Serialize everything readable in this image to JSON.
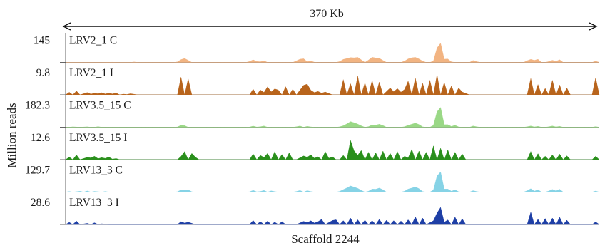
{
  "chart_data": {
    "type": "area",
    "title": "",
    "span_label": "370 Kb",
    "xlabel": "Scaffold 2244",
    "ylabel": "Million reads",
    "x_range": [
      0,
      370
    ],
    "x_unit": "Kb",
    "bin_kb": 2.5,
    "grid": false,
    "legend": "none",
    "tracks": [
      {
        "name": "LRV2_1 C",
        "ymax": "145",
        "color": "#f2b482",
        "peaks": [
          [
            29,
            0.01,
            2
          ],
          [
            33,
            0.01,
            2
          ],
          [
            48,
            0.02,
            2
          ],
          [
            81,
            0.13,
            4
          ],
          [
            84,
            0.11,
            3
          ],
          [
            130,
            0.09,
            4
          ],
          [
            137,
            0.07,
            3
          ],
          [
            162,
            0.11,
            4
          ],
          [
            165,
            0.1,
            3
          ],
          [
            170,
            0.05,
            3
          ],
          [
            193,
            0.12,
            4
          ],
          [
            198,
            0.19,
            5
          ],
          [
            203,
            0.18,
            4
          ],
          [
            213,
            0.2,
            5
          ],
          [
            218,
            0.14,
            4
          ],
          [
            238,
            0.12,
            5
          ],
          [
            243,
            0.18,
            6
          ],
          [
            258,
            0.12,
            5
          ],
          [
            259,
            1.0,
            2.5
          ],
          [
            264,
            0.16,
            4
          ],
          [
            283,
            0.08,
            3
          ],
          [
            322,
            0.12,
            4
          ],
          [
            327,
            0.13,
            3
          ],
          [
            337,
            0.09,
            3
          ],
          [
            342,
            0.11,
            3
          ],
          [
            368,
            0.06,
            2
          ]
        ]
      },
      {
        "name": "LRV2_1 I",
        "ymax": "9.8",
        "color": "#b8641c",
        "peaks": [
          [
            2,
            0.12,
            2
          ],
          [
            8,
            0.18,
            2
          ],
          [
            14,
            0.16,
            2
          ],
          [
            19,
            0.11,
            2
          ],
          [
            24,
            0.15,
            2
          ],
          [
            29,
            0.12,
            2
          ],
          [
            34,
            0.13,
            2
          ],
          [
            41,
            0.05,
            2
          ],
          [
            46,
            0.08,
            2
          ],
          [
            80,
            0.62,
            2
          ],
          [
            85,
            0.56,
            2
          ],
          [
            130,
            0.2,
            2
          ],
          [
            136,
            0.34,
            2
          ],
          [
            140,
            0.28,
            2
          ],
          [
            144,
            0.42,
            2
          ],
          [
            148,
            0.22,
            2
          ],
          [
            152,
            0.38,
            2
          ],
          [
            158,
            0.26,
            2
          ],
          [
            164,
            0.67,
            2
          ],
          [
            168,
            0.5,
            2
          ],
          [
            171,
            0.32,
            2
          ],
          [
            176,
            0.24,
            2
          ],
          [
            181,
            0.2,
            2
          ],
          [
            192,
            0.71,
            2
          ],
          [
            197,
            0.52,
            2
          ],
          [
            202,
            0.88,
            2
          ],
          [
            208,
            0.56,
            2
          ],
          [
            213,
            0.67,
            2
          ],
          [
            218,
            0.6,
            2
          ],
          [
            224,
            0.48,
            2
          ],
          [
            229,
            0.44,
            2
          ],
          [
            234,
            0.38,
            2
          ],
          [
            238,
            0.64,
            2
          ],
          [
            243,
            0.78,
            2
          ],
          [
            248,
            0.54,
            2
          ],
          [
            253,
            0.68,
            2
          ],
          [
            258,
            0.94,
            2
          ],
          [
            263,
            0.58,
            2
          ],
          [
            268,
            0.42,
            2
          ],
          [
            272,
            0.32,
            2
          ],
          [
            276,
            0.2,
            2
          ],
          [
            322,
            0.76,
            2
          ],
          [
            327,
            0.48,
            2
          ],
          [
            332,
            0.3,
            2
          ],
          [
            337,
            0.68,
            2
          ],
          [
            342,
            0.46,
            2
          ],
          [
            347,
            0.32,
            2
          ],
          [
            368,
            0.8,
            2
          ]
        ]
      },
      {
        "name": "LRV3.5_15 C",
        "ymax": "182.3",
        "color": "#9ad886",
        "peaks": [
          [
            6,
            0.03,
            2
          ],
          [
            14,
            0.03,
            2
          ],
          [
            22,
            0.03,
            2
          ],
          [
            81,
            0.09,
            4
          ],
          [
            130,
            0.04,
            3
          ],
          [
            137,
            0.05,
            3
          ],
          [
            162,
            0.05,
            3
          ],
          [
            168,
            0.04,
            3
          ],
          [
            193,
            0.06,
            4
          ],
          [
            198,
            0.22,
            5
          ],
          [
            203,
            0.1,
            4
          ],
          [
            213,
            0.09,
            4
          ],
          [
            218,
            0.12,
            4
          ],
          [
            238,
            0.08,
            4
          ],
          [
            243,
            0.16,
            5
          ],
          [
            258,
            0.16,
            5
          ],
          [
            259,
            1.0,
            2.5
          ],
          [
            264,
            0.12,
            4
          ],
          [
            270,
            0.07,
            3
          ],
          [
            283,
            0.05,
            3
          ],
          [
            322,
            0.05,
            3
          ],
          [
            327,
            0.04,
            3
          ],
          [
            337,
            0.05,
            3
          ],
          [
            342,
            0.04,
            3
          ],
          [
            368,
            0.03,
            2
          ]
        ]
      },
      {
        "name": "LRV3.5_15 I",
        "ymax": "12.6",
        "color": "#2a8f1c",
        "peaks": [
          [
            2,
            0.12,
            2
          ],
          [
            8,
            0.22,
            2
          ],
          [
            14,
            0.16,
            2
          ],
          [
            19,
            0.24,
            2
          ],
          [
            24,
            0.14,
            2
          ],
          [
            29,
            0.18,
            2
          ],
          [
            34,
            0.08,
            2
          ],
          [
            82,
            0.34,
            3
          ],
          [
            88,
            0.26,
            3
          ],
          [
            130,
            0.2,
            2
          ],
          [
            136,
            0.3,
            2
          ],
          [
            140,
            0.22,
            2
          ],
          [
            145,
            0.28,
            2
          ],
          [
            150,
            0.18,
            2
          ],
          [
            155,
            0.24,
            2
          ],
          [
            164,
            0.26,
            2
          ],
          [
            169,
            0.34,
            2
          ],
          [
            174,
            0.2,
            2
          ],
          [
            180,
            0.28,
            2
          ],
          [
            184,
            0.2,
            2
          ],
          [
            193,
            0.2,
            2
          ],
          [
            197,
            0.9,
            2
          ],
          [
            201,
            0.62,
            2
          ],
          [
            205,
            0.32,
            2
          ],
          [
            210,
            0.26,
            2
          ],
          [
            215,
            0.24,
            2
          ],
          [
            220,
            0.3,
            2
          ],
          [
            225,
            0.22,
            2
          ],
          [
            230,
            0.28,
            2
          ],
          [
            236,
            0.24,
            2
          ],
          [
            240,
            0.36,
            2
          ],
          [
            245,
            0.3,
            2
          ],
          [
            250,
            0.26,
            2
          ],
          [
            255,
            0.48,
            2
          ],
          [
            260,
            0.4,
            2
          ],
          [
            265,
            0.34,
            2
          ],
          [
            270,
            0.26,
            2
          ],
          [
            275,
            0.2,
            2
          ],
          [
            322,
            0.38,
            2
          ],
          [
            327,
            0.28,
            2
          ],
          [
            332,
            0.16,
            2
          ],
          [
            337,
            0.22,
            2
          ],
          [
            342,
            0.26,
            2
          ],
          [
            347,
            0.18,
            2
          ],
          [
            368,
            0.16,
            2
          ]
        ]
      },
      {
        "name": "LRV13_3 C",
        "ymax": "129.7",
        "color": "#86d3e6",
        "peaks": [
          [
            3,
            0.03,
            2
          ],
          [
            9,
            0.06,
            2
          ],
          [
            15,
            0.04,
            2
          ],
          [
            21,
            0.05,
            2
          ],
          [
            27,
            0.03,
            2
          ],
          [
            81,
            0.1,
            4
          ],
          [
            85,
            0.08,
            3
          ],
          [
            130,
            0.06,
            3
          ],
          [
            137,
            0.07,
            3
          ],
          [
            143,
            0.05,
            3
          ],
          [
            162,
            0.07,
            3
          ],
          [
            168,
            0.06,
            3
          ],
          [
            193,
            0.1,
            4
          ],
          [
            198,
            0.24,
            5
          ],
          [
            203,
            0.12,
            4
          ],
          [
            213,
            0.12,
            4
          ],
          [
            218,
            0.16,
            4
          ],
          [
            238,
            0.12,
            4
          ],
          [
            243,
            0.2,
            5
          ],
          [
            258,
            0.18,
            5
          ],
          [
            259,
            1.0,
            2.5
          ],
          [
            264,
            0.14,
            4
          ],
          [
            270,
            0.08,
            3
          ],
          [
            283,
            0.06,
            3
          ],
          [
            322,
            0.14,
            3
          ],
          [
            327,
            0.1,
            3
          ],
          [
            337,
            0.11,
            3
          ],
          [
            342,
            0.12,
            3
          ],
          [
            368,
            0.05,
            2
          ]
        ]
      },
      {
        "name": "LRV13_3 I",
        "ymax": "28.6",
        "color": "#1e3fa6",
        "peaks": [
          [
            2,
            0.1,
            2
          ],
          [
            8,
            0.16,
            2
          ],
          [
            14,
            0.08,
            2
          ],
          [
            20,
            0.06,
            2
          ],
          [
            26,
            0.05,
            2
          ],
          [
            81,
            0.2,
            2
          ],
          [
            86,
            0.16,
            2
          ],
          [
            130,
            0.14,
            2
          ],
          [
            135,
            0.1,
            2
          ],
          [
            140,
            0.12,
            2
          ],
          [
            145,
            0.08,
            2
          ],
          [
            150,
            0.1,
            2
          ],
          [
            164,
            0.22,
            2
          ],
          [
            169,
            0.26,
            2
          ],
          [
            174,
            0.2,
            2
          ],
          [
            178,
            0.24,
            2
          ],
          [
            184,
            0.28,
            2
          ],
          [
            188,
            0.22,
            2
          ],
          [
            193,
            0.18,
            2
          ],
          [
            198,
            0.3,
            2
          ],
          [
            203,
            0.22,
            2
          ],
          [
            208,
            0.2,
            2
          ],
          [
            213,
            0.18,
            2
          ],
          [
            218,
            0.24,
            2
          ],
          [
            223,
            0.2,
            2
          ],
          [
            228,
            0.18,
            2
          ],
          [
            233,
            0.16,
            2
          ],
          [
            238,
            0.22,
            2
          ],
          [
            243,
            0.36,
            2
          ],
          [
            248,
            0.3,
            2
          ],
          [
            254,
            0.26,
            2
          ],
          [
            259,
            1.0,
            2.5
          ],
          [
            264,
            0.32,
            2
          ],
          [
            270,
            0.26,
            2
          ],
          [
            275,
            0.2,
            2
          ],
          [
            322,
            0.58,
            2
          ],
          [
            327,
            0.24,
            2
          ],
          [
            332,
            0.28,
            2
          ],
          [
            337,
            0.3,
            2
          ],
          [
            342,
            0.34,
            2
          ],
          [
            347,
            0.2,
            2
          ],
          [
            368,
            0.12,
            2
          ]
        ]
      }
    ]
  }
}
